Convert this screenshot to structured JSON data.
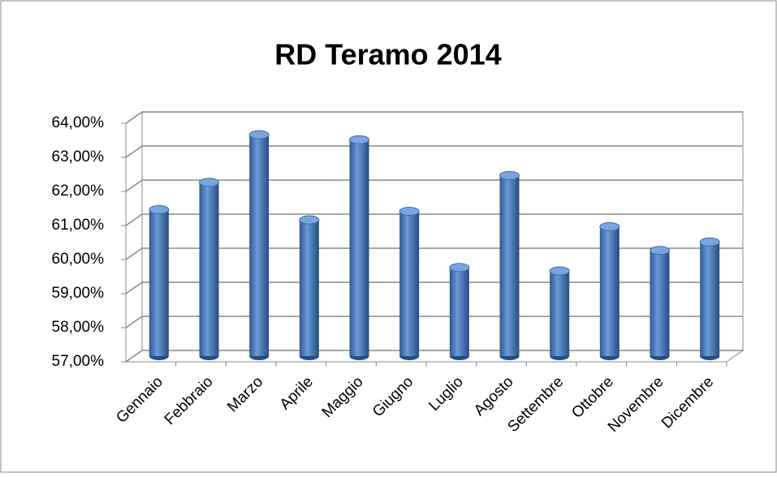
{
  "chart_data": {
    "type": "bar",
    "title": "RD Teramo 2014",
    "categories": [
      "Gennaio",
      "Febbraio",
      "Marzo",
      "Aprile",
      "Maggio",
      "Giugno",
      "Luglio",
      "Agosto",
      "Settembre",
      "Ottobre",
      "Novembre",
      "Dicembre"
    ],
    "values": [
      61.3,
      62.1,
      63.5,
      61.0,
      63.35,
      61.25,
      59.6,
      62.3,
      59.5,
      60.8,
      60.1,
      60.35
    ],
    "color": "#4a7ebb",
    "ylim": [
      57,
      64
    ],
    "yticks": [
      {
        "value": 57,
        "label": "57,00%"
      },
      {
        "value": 58,
        "label": "58,00%"
      },
      {
        "value": 59,
        "label": "59,00%"
      },
      {
        "value": 60,
        "label": "60,00%"
      },
      {
        "value": 61,
        "label": "61,00%"
      },
      {
        "value": 62,
        "label": "62,00%"
      },
      {
        "value": 63,
        "label": "63,00%"
      },
      {
        "value": 64,
        "label": "64,00%"
      }
    ],
    "grid": true
  }
}
